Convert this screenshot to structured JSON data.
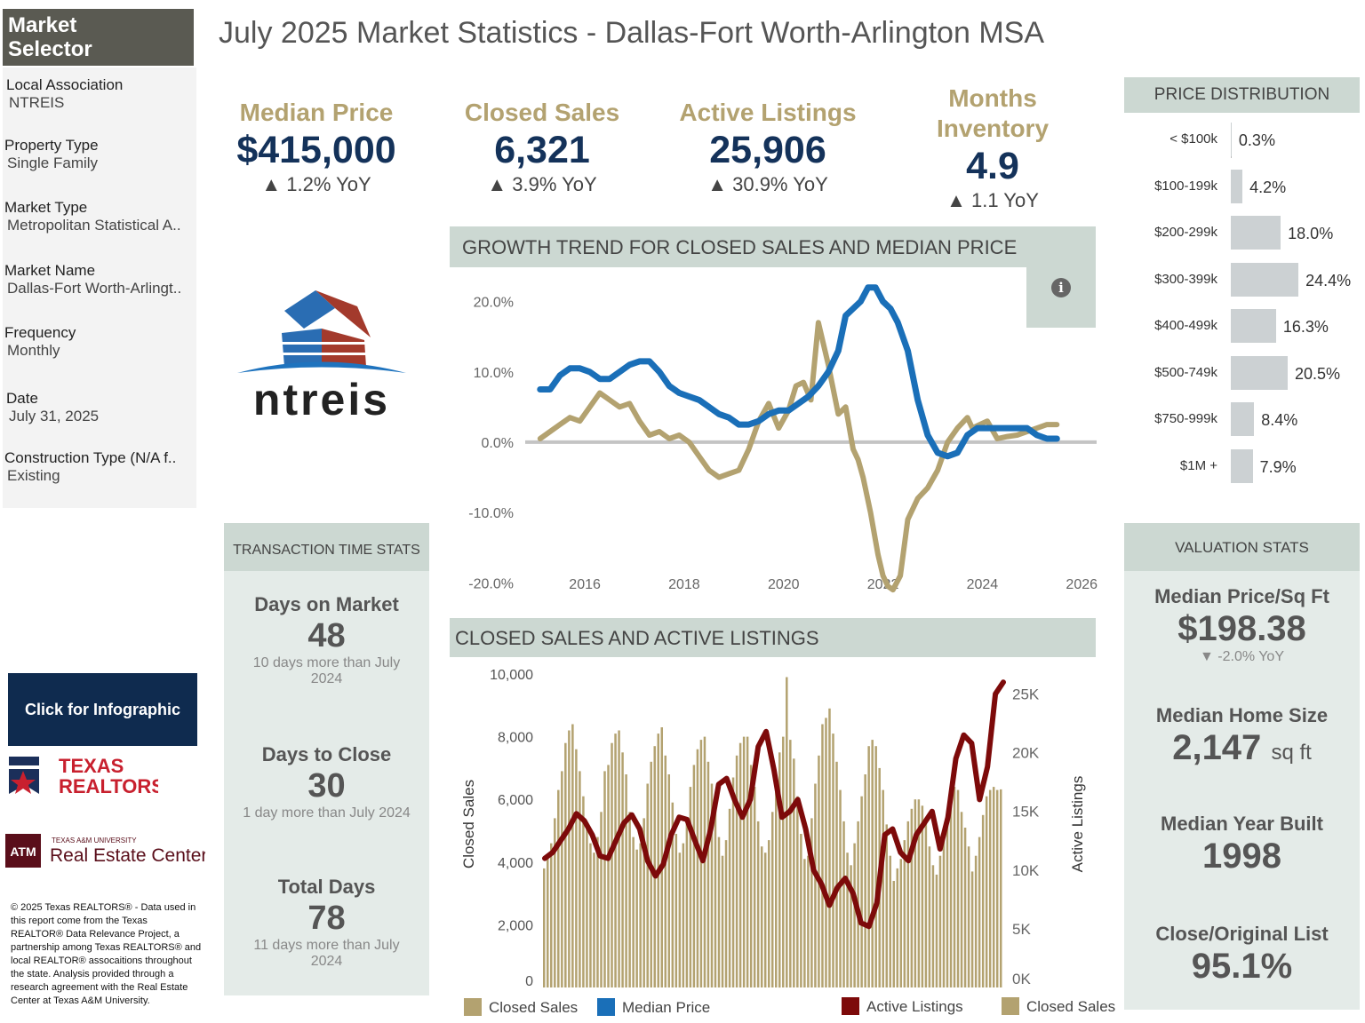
{
  "title": "July 2025 Market Statistics - Dallas-Fort Worth-Arlington MSA",
  "selector": {
    "heading_line1": "Market",
    "heading_line2": "Selector",
    "items": [
      {
        "label": "Local Association",
        "value": "NTREIS"
      },
      {
        "label": "Property Type",
        "value": "Single Family"
      },
      {
        "label": "Market Type",
        "value": "Metropolitan Statistical A.."
      },
      {
        "label": "Market Name",
        "value": "Dallas-Fort Worth-Arlingt.."
      },
      {
        "label": "Frequency",
        "value": "Monthly"
      },
      {
        "label": "Date",
        "value": "July 31, 2025"
      },
      {
        "label": "Construction Type (N/A f..",
        "value": "Existing"
      }
    ]
  },
  "logo": {
    "text": "ntreis"
  },
  "kpis": [
    {
      "label": "Median Price",
      "value": "$415,000",
      "change": "▲ 1.2% YoY"
    },
    {
      "label": "Closed Sales",
      "value": "6,321",
      "change": "▲ 3.9% YoY"
    },
    {
      "label": "Active Listings",
      "value": "25,906",
      "change": "▲ 30.9% YoY"
    },
    {
      "label_line1": "Months",
      "label_line2": "Inventory",
      "value": "4.9",
      "change": "▲ 1.1 YoY"
    }
  ],
  "price_distribution": {
    "heading": "PRICE DISTRIBUTION",
    "rows": [
      {
        "label": "< $100k",
        "pct": 0.3,
        "text": "0.3%"
      },
      {
        "label": "$100-199k",
        "pct": 4.2,
        "text": "4.2%"
      },
      {
        "label": "$200-299k",
        "pct": 18.0,
        "text": "18.0%"
      },
      {
        "label": "$300-399k",
        "pct": 24.4,
        "text": "24.4%"
      },
      {
        "label": "$400-499k",
        "pct": 16.3,
        "text": "16.3%"
      },
      {
        "label": "$500-749k",
        "pct": 20.5,
        "text": "20.5%"
      },
      {
        "label": "$750-999k",
        "pct": 8.4,
        "text": "8.4%"
      },
      {
        "label": "$1M +",
        "pct": 7.9,
        "text": "7.9%"
      }
    ]
  },
  "transaction_time": {
    "heading": "TRANSACTION TIME STATS",
    "items": [
      {
        "label": "Days on Market",
        "value": "48",
        "note": "10 days more than July 2024"
      },
      {
        "label": "Days to Close",
        "value": "30",
        "note": "1 day more than July 2024"
      },
      {
        "label": "Total Days",
        "value": "78",
        "note": "11 days more than July 2024"
      }
    ]
  },
  "valuation": {
    "heading": "VALUATION STATS",
    "items": [
      {
        "label": "Median Price/Sq Ft",
        "value": "$198.38",
        "change": "▼ -2.0% YoY"
      },
      {
        "label": "Median Home Size",
        "value": "2,147",
        "unit": "sq ft"
      },
      {
        "label": "Median Year Built",
        "value": "1998"
      },
      {
        "label": "Close/Original List",
        "value": "95.1%"
      }
    ]
  },
  "buttons": {
    "infographic": "Click for Infographic"
  },
  "sponsors": {
    "texas_realtors_line1": "TEXAS",
    "texas_realtors_line2": "REALTORS",
    "tamu_small": "TEXAS A&M UNIVERSITY",
    "tamu_name": "Real Estate Center",
    "tamu_mark": "ATM"
  },
  "copyright": "© 2025 Texas REALTORS® - Data used in this report come from the Texas REALTOR® Data Relevance Project, a partnership among Texas REALTORS® and local REALTOR® assocaitions throughout the state. Analysis provided through a research agreement with the Real Estate Center at Texas A&M University.",
  "colors": {
    "gold": "#b3a270",
    "navy": "#14325a",
    "blue": "#1a6fb8",
    "maroon": "#7d0a0a",
    "panel": "#ccd8d2",
    "panel_light": "#e4ebe8"
  },
  "chart_data": [
    {
      "type": "line",
      "title": "GROWTH TREND FOR CLOSED SALES AND MEDIAN PRICE",
      "y_tick_labels": [
        "20.0%",
        "10.0%",
        "0.0%",
        "-10.0%",
        "-20.0%"
      ],
      "y_ticks": [
        20,
        10,
        0,
        -10,
        -20
      ],
      "ylim": [
        -23,
        25
      ],
      "x_tick_labels": [
        "2016",
        "2018",
        "2020",
        "2022",
        "2024",
        "2026"
      ],
      "x_ticks": [
        2016,
        2018,
        2020,
        2022,
        2024,
        2026
      ],
      "xlim": [
        2014.8,
        2026.3
      ],
      "series": [
        {
          "name": "Closed Sales",
          "color": "#b3a270",
          "x": [
            2015.1,
            2015.3,
            2015.5,
            2015.7,
            2015.9,
            2016.1,
            2016.3,
            2016.5,
            2016.7,
            2016.9,
            2017.1,
            2017.3,
            2017.5,
            2017.7,
            2017.9,
            2018.1,
            2018.3,
            2018.5,
            2018.7,
            2018.9,
            2019.1,
            2019.3,
            2019.5,
            2019.7,
            2019.9,
            2020.1,
            2020.25,
            2020.4,
            2020.55,
            2020.7,
            2020.9,
            2021.1,
            2021.25,
            2021.4,
            2021.5,
            2021.6,
            2021.75,
            2021.9,
            2022.0,
            2022.1,
            2022.2,
            2022.35,
            2022.5,
            2022.7,
            2022.9,
            2023.1,
            2023.3,
            2023.5,
            2023.7,
            2023.8,
            2023.95,
            2024.1,
            2024.3,
            2024.5,
            2024.7,
            2024.9,
            2025.1,
            2025.3,
            2025.5
          ],
          "y": [
            0.5,
            1.5,
            2.5,
            3.5,
            3.0,
            5.0,
            7.0,
            6.0,
            5.0,
            5.5,
            3.0,
            1.0,
            1.5,
            0.5,
            1.0,
            0,
            -2.0,
            -4.0,
            -5.0,
            -4.5,
            -4.0,
            -1.0,
            3.0,
            5.5,
            2.0,
            4.5,
            8.0,
            8.5,
            6.0,
            17.0,
            11.0,
            4.0,
            5.0,
            -1.0,
            -2.5,
            -5.0,
            -10.0,
            -16.0,
            -19.0,
            -20.5,
            -21.0,
            -19.0,
            -11.0,
            -8.0,
            -6.5,
            -4.0,
            0,
            2.0,
            3.5,
            2.0,
            2.5,
            3.0,
            0.5,
            0.8,
            1.0,
            1.5,
            2.0,
            2.5,
            2.5
          ]
        },
        {
          "name": "Median Price",
          "color": "#1a6fb8",
          "x": [
            2015.1,
            2015.3,
            2015.5,
            2015.7,
            2015.9,
            2016.1,
            2016.3,
            2016.5,
            2016.7,
            2016.9,
            2017.1,
            2017.3,
            2017.5,
            2017.7,
            2017.9,
            2018.1,
            2018.3,
            2018.5,
            2018.7,
            2018.9,
            2019.1,
            2019.3,
            2019.5,
            2019.7,
            2019.9,
            2020.1,
            2020.3,
            2020.5,
            2020.7,
            2020.9,
            2021.1,
            2021.25,
            2021.4,
            2021.55,
            2021.7,
            2021.85,
            2022.0,
            2022.15,
            2022.3,
            2022.5,
            2022.7,
            2022.9,
            2023.1,
            2023.3,
            2023.5,
            2023.7,
            2023.9,
            2024.1,
            2024.3,
            2024.5,
            2024.7,
            2024.9,
            2025.1,
            2025.3,
            2025.5
          ],
          "y": [
            7.5,
            7.5,
            9.5,
            10.5,
            10.5,
            10.0,
            9.0,
            9.0,
            10.0,
            11.0,
            11.5,
            11.5,
            10.0,
            8.0,
            7.0,
            6.5,
            6.0,
            5.0,
            4.0,
            3.5,
            2.5,
            2.5,
            3.0,
            4.0,
            4.5,
            4.5,
            5.5,
            6.5,
            8.0,
            10.0,
            13.0,
            18.0,
            19.0,
            20.0,
            22.0,
            22.0,
            20.0,
            19.0,
            17.0,
            13.0,
            6.0,
            1.0,
            -1.5,
            -2.0,
            -1.5,
            1.0,
            2.0,
            2.0,
            2.0,
            2.0,
            2.0,
            2.0,
            1.0,
            0.5,
            0.5
          ]
        }
      ]
    },
    {
      "type": "bar",
      "title": "CLOSED SALES AND ACTIVE LISTINGS",
      "ylabel_left": "Closed Sales",
      "ylabel_right": "Active Listings",
      "y_left_tick_labels": [
        "10,000",
        "8,000",
        "6,000",
        "4,000",
        "2,000",
        "0"
      ],
      "y_left_ticks": [
        10000,
        8000,
        6000,
        4000,
        2000,
        0
      ],
      "ylim_left": [
        0,
        10000
      ],
      "y_right_tick_labels": [
        "25K",
        "20K",
        "15K",
        "10K",
        "5K",
        "0K"
      ],
      "y_right_ticks": [
        25000,
        20000,
        15000,
        10000,
        5000,
        0
      ],
      "ylim_right": [
        0,
        27000
      ],
      "series": [
        {
          "name": "Closed Sales",
          "color": "#b3a270",
          "values": [
            3800,
            4200,
            4600,
            5400,
            6300,
            6900,
            7800,
            8200,
            8400,
            7600,
            6900,
            6100,
            5100,
            4600,
            4300,
            4800,
            5600,
            6900,
            7100,
            7800,
            8100,
            8200,
            7500,
            6800,
            5600,
            4800,
            4400,
            4600,
            5400,
            6500,
            7200,
            7700,
            8100,
            8300,
            7400,
            6800,
            5900,
            4900,
            4300,
            4600,
            5300,
            6400,
            7100,
            7600,
            7900,
            8000,
            7200,
            6500,
            5700,
            4800,
            4200,
            4700,
            5700,
            6700,
            7400,
            7800,
            8000,
            8000,
            7100,
            6400,
            5300,
            4500,
            4300,
            4700,
            5600,
            6800,
            7500,
            8000,
            9900,
            7900,
            7300,
            6100,
            4900,
            4100,
            4200,
            5400,
            6500,
            7400,
            8400,
            8600,
            8900,
            8100,
            7200,
            6300,
            5300,
            4300,
            3900,
            4600,
            5300,
            6100,
            6800,
            7700,
            7900,
            7700,
            7000,
            6300,
            5200,
            4200,
            3400,
            3800,
            4100,
            4700,
            5300,
            5700,
            6000,
            6000,
            5800,
            5300,
            4500,
            3900,
            3600,
            4200,
            4800,
            5600,
            6200,
            6400,
            6300,
            5600,
            5100,
            4500,
            3700,
            4200,
            4800,
            5500,
            6100,
            6300,
            6400,
            6300,
            6321
          ]
        },
        {
          "name": "Active Listings",
          "color": "#7d0a0a",
          "values": [
            11000,
            11500,
            12500,
            13500,
            14800,
            14200,
            13000,
            11200,
            11000,
            12500,
            14000,
            14700,
            13500,
            10800,
            9500,
            10500,
            13000,
            14500,
            14300,
            12500,
            10800,
            13500,
            17300,
            17800,
            16000,
            14500,
            16000,
            20500,
            21800,
            18500,
            14500,
            15000,
            16000,
            13500,
            10000,
            8800,
            7000,
            8500,
            9300,
            8000,
            5500,
            5200,
            7200,
            13000,
            13500,
            11500,
            10800,
            13000,
            14000,
            15000,
            11800,
            14500,
            19500,
            21500,
            20800,
            16000,
            18800,
            25000,
            26000
          ]
        }
      ]
    }
  ]
}
